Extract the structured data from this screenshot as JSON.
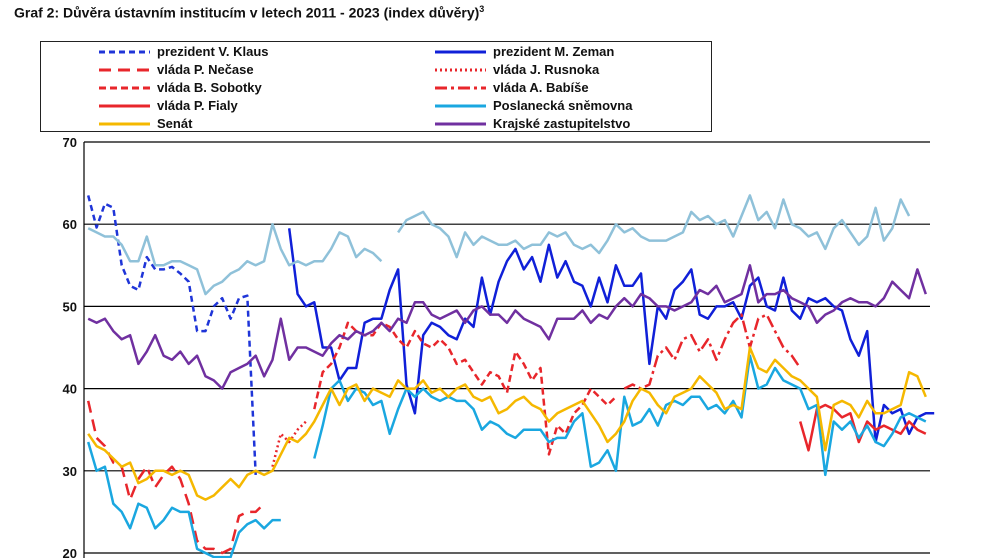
{
  "title": "Graf 2: Důvěra ústavním institucím v letech 2011 - 2023 (index důvěry)",
  "title_sup": "3",
  "chart_data": {
    "type": "line",
    "ylim": [
      20,
      70
    ],
    "yticks": [
      20,
      30,
      40,
      50,
      60,
      70
    ],
    "grid": true,
    "legend_position": "top",
    "n_points": 101,
    "series": [
      {
        "name": "prezident V. Klaus",
        "color": "#1f35d8",
        "dash": "6,4",
        "width": 2.5,
        "start": 0,
        "values": [
          63.5,
          59.6,
          62.5,
          62.0,
          55.0,
          52.5,
          52.0,
          56.0,
          54.5,
          54.5,
          54.8,
          54.0,
          53.0,
          47.0,
          47.0,
          50.0,
          51.0,
          48.5,
          51.0,
          51.3,
          29.5
        ]
      },
      {
        "name": "prezident M. Zeman",
        "color": "#1020d8",
        "dash": "",
        "width": 2.5,
        "start": 24,
        "values": [
          59.5,
          51.5,
          50.0,
          50.5,
          45.0,
          45.0,
          41.0,
          42.5,
          42.5,
          48.0,
          48.5,
          48.5,
          52.0,
          54.5,
          40.5,
          37.0,
          46.5,
          48.0,
          47.5,
          46.5,
          46.0,
          48.5,
          47.5,
          53.5,
          49.0,
          53.0,
          55.5,
          57.0,
          54.5,
          56.0,
          53.0,
          57.5,
          53.5,
          55.5,
          53.0,
          52.5,
          50.0,
          53.5,
          50.5,
          55.0,
          52.5,
          52.5,
          54.0,
          43.0,
          50.0,
          48.5,
          52.0,
          53.0,
          54.5,
          49.0,
          48.5,
          50.0,
          50.0,
          50.5,
          48.5,
          52.5,
          53.5,
          50.0,
          49.5,
          53.5,
          49.5,
          48.5,
          51.0,
          50.5,
          51.0,
          50.0,
          49.5,
          46.0,
          44.0,
          47.0,
          33.5,
          38.0,
          37.0,
          37.5,
          34.5,
          36.5,
          37.0,
          37.0
        ]
      },
      {
        "name": "vláda P. Nečase",
        "color": "#e8262b",
        "dash": "12,7",
        "width": 2.5,
        "start": 0,
        "values": [
          38.5,
          34.0,
          33.0,
          31.0,
          30.5,
          26.5,
          29.0,
          30.5,
          28.0,
          29.5,
          30.5,
          29.0,
          26.0,
          21.5,
          20.5,
          20.5,
          20.0,
          20.5,
          24.5,
          25.0,
          25.0,
          26.0
        ]
      },
      {
        "name": "vláda J. Rusnoka",
        "color": "#e8262b",
        "dash": "2,3",
        "width": 2.5,
        "start": 22,
        "values": [
          30.5,
          34.5,
          33.5,
          35.0,
          36.0
        ]
      },
      {
        "name": "vláda B. Sobotky",
        "color": "#e8262b",
        "dash": "7,4",
        "width": 2.5,
        "start": 27,
        "values": [
          37.5,
          42.0,
          43.0,
          45.0,
          48.0,
          47.0,
          46.5,
          46.5,
          48.0,
          47.5,
          46.0,
          45.0,
          47.0,
          45.5,
          45.0,
          46.0,
          45.0,
          43.0,
          43.5,
          42.0,
          40.5,
          42.0,
          41.5,
          39.5,
          44.5,
          43.0,
          41.0,
          42.5,
          32.0,
          35.5,
          34.5,
          37.0,
          38.0,
          40.0,
          39.0,
          38.0,
          39.0
        ]
      },
      {
        "name": "vláda A. Babíše",
        "color": "#e8262b",
        "dash": "12,4,3,4",
        "width": 2.5,
        "start": 64,
        "values": [
          40.0,
          40.5,
          40.0,
          40.5,
          44.0,
          45.0,
          43.5,
          46.0,
          46.5,
          44.5,
          46.0,
          43.5,
          46.0,
          48.0,
          49.0,
          45.0,
          48.5,
          49.0,
          47.0,
          45.0,
          44.0,
          42.5
        ]
      },
      {
        "name": "vláda P. Fialy",
        "color": "#e8262b",
        "dash": "",
        "width": 2.5,
        "start": 85,
        "values": [
          36.0,
          32.5,
          37.5,
          38.0,
          37.5,
          36.5,
          37.0,
          33.5,
          36.0,
          35.0,
          35.5,
          35.0,
          34.5,
          36.0,
          35.0,
          34.5
        ]
      },
      {
        "name": "Poslanecká sněmovna",
        "color": "#1aa7e0",
        "dash": "",
        "width": 2.5,
        "start": 0,
        "values": [
          33.5,
          30.0,
          30.5,
          26.0,
          25.0,
          23.0,
          26.0,
          25.5,
          23.0,
          24.0,
          25.5,
          25.0,
          25.0,
          20.5,
          20.0,
          19.5,
          19.5,
          19.5,
          22.5,
          23.5,
          24.0,
          23.0,
          24.0,
          24.0,
          null,
          null,
          null,
          31.5,
          35.5,
          40.0,
          41.0,
          38.5,
          40.0,
          39.5,
          38.0,
          38.5,
          34.5,
          37.5,
          40.0,
          39.0,
          40.0,
          39.0,
          38.5,
          39.0,
          38.5,
          38.5,
          37.5,
          35.0,
          36.0,
          35.5,
          34.5,
          34.0,
          35.0,
          35.0,
          35.0,
          33.5,
          34.0,
          34.0,
          36.0,
          37.0,
          30.5,
          31.0,
          32.5,
          30.0,
          39.0,
          35.5,
          36.0,
          37.5,
          35.5,
          38.0,
          38.5,
          38.0,
          39.0,
          39.0,
          37.5,
          38.0,
          37.0,
          38.5,
          36.5,
          44.0,
          40.0,
          40.5,
          42.5,
          41.0,
          40.5,
          40.0,
          37.5,
          38.0,
          29.5,
          36.0,
          35.0,
          36.0,
          34.0,
          35.5,
          33.5,
          33.0,
          34.5,
          36.5,
          37.0,
          36.5,
          36.0
        ]
      },
      {
        "name": "Senát",
        "color": "#f5b800",
        "dash": "",
        "width": 2.5,
        "start": 0,
        "values": [
          34.5,
          33.0,
          32.5,
          31.5,
          30.5,
          31.0,
          28.5,
          29.0,
          30.0,
          30.0,
          29.5,
          30.0,
          29.5,
          27.0,
          26.5,
          27.0,
          28.0,
          29.0,
          28.0,
          29.5,
          30.0,
          29.5,
          30.0,
          32.0,
          34.0,
          33.5,
          34.5,
          36.0,
          38.0,
          40.0,
          38.0,
          40.0,
          40.5,
          38.5,
          40.0,
          39.5,
          39.0,
          41.0,
          40.0,
          40.0,
          41.0,
          39.5,
          40.0,
          39.0,
          40.0,
          40.5,
          39.0,
          38.5,
          39.0,
          37.0,
          37.5,
          38.5,
          39.0,
          38.0,
          37.5,
          36.0,
          37.0,
          37.5,
          38.0,
          38.5,
          37.0,
          35.5,
          33.5,
          34.5,
          36.0,
          38.5,
          40.0,
          39.5,
          38.0,
          37.0,
          39.0,
          39.5,
          40.0,
          41.5,
          40.5,
          39.5,
          37.5,
          38.0,
          37.5,
          45.0,
          42.5,
          42.0,
          43.5,
          42.5,
          41.5,
          41.0,
          40.0,
          39.0,
          32.5,
          38.0,
          38.5,
          38.0,
          36.5,
          38.5,
          37.0,
          37.0,
          37.5,
          38.0,
          42.0,
          41.5,
          39.0
        ]
      },
      {
        "name": "Krajské zastupitelstvo",
        "color": "#7030a0",
        "dash": "",
        "width": 2.5,
        "start": 0,
        "values": [
          48.5,
          48.0,
          48.5,
          47.0,
          46.0,
          46.5,
          43.0,
          44.5,
          46.5,
          44.0,
          43.5,
          44.5,
          43.0,
          44.0,
          41.5,
          41.0,
          40.0,
          42.0,
          42.5,
          43.0,
          44.0,
          41.5,
          43.5,
          48.5,
          43.5,
          45.0,
          45.0,
          44.5,
          44.0,
          45.5,
          46.5,
          46.0,
          47.0,
          46.5,
          47.0,
          48.0,
          47.0,
          48.5,
          48.0,
          50.5,
          50.5,
          49.0,
          48.5,
          49.0,
          49.5,
          48.0,
          49.5,
          50.0,
          49.0,
          49.0,
          48.0,
          49.5,
          48.5,
          48.0,
          47.5,
          46.0,
          48.5,
          48.5,
          48.5,
          49.5,
          48.0,
          49.0,
          48.5,
          50.0,
          51.0,
          50.0,
          51.5,
          51.0,
          50.0,
          50.0,
          49.5,
          50.0,
          50.5,
          52.0,
          51.5,
          52.5,
          50.5,
          51.0,
          51.5,
          55.0,
          50.5,
          51.5,
          51.5,
          52.0,
          51.0,
          50.5,
          50.0,
          48.0,
          49.0,
          49.5,
          50.5,
          51.0,
          50.5,
          50.5,
          50.0,
          51.0,
          53.0,
          52.0,
          51.0,
          54.5,
          51.5
        ]
      },
      {
        "name": "Krajské zastupitelstvo (light)",
        "color": "#8fc1d9",
        "dash": "",
        "width": 2.5,
        "in_legend": false,
        "start": 0,
        "values": [
          59.5,
          59.0,
          58.5,
          58.5,
          57.5,
          55.5,
          55.5,
          58.5,
          55.0,
          55.0,
          55.5,
          55.5,
          55.0,
          54.5,
          51.5,
          52.5,
          53.0,
          54.0,
          54.5,
          55.5,
          55.0,
          55.5,
          60.0,
          57.0,
          55.0,
          55.5,
          55.0,
          55.5,
          55.5,
          57.0,
          59.0,
          58.5,
          56.0,
          57.0,
          56.5,
          55.5,
          null,
          59.0,
          60.5,
          61.0,
          61.5,
          60.0,
          59.5,
          58.5,
          56.0,
          59.0,
          57.5,
          58.5,
          58.0,
          57.5,
          57.5,
          58.0,
          57.0,
          57.5,
          57.5,
          59.0,
          58.5,
          59.0,
          57.5,
          57.0,
          57.5,
          56.5,
          58.0,
          60.0,
          59.0,
          59.5,
          58.5,
          58.0,
          58.0,
          58.0,
          58.5,
          59.0,
          61.5,
          60.5,
          61.0,
          60.0,
          60.5,
          58.5,
          61.0,
          63.5,
          60.5,
          61.5,
          59.5,
          63.0,
          60.0,
          59.5,
          58.5,
          59.0,
          57.0,
          59.5,
          60.5,
          59.0,
          57.5,
          58.5,
          62.0,
          58.0,
          59.5,
          63.0,
          61.0
        ]
      }
    ]
  }
}
